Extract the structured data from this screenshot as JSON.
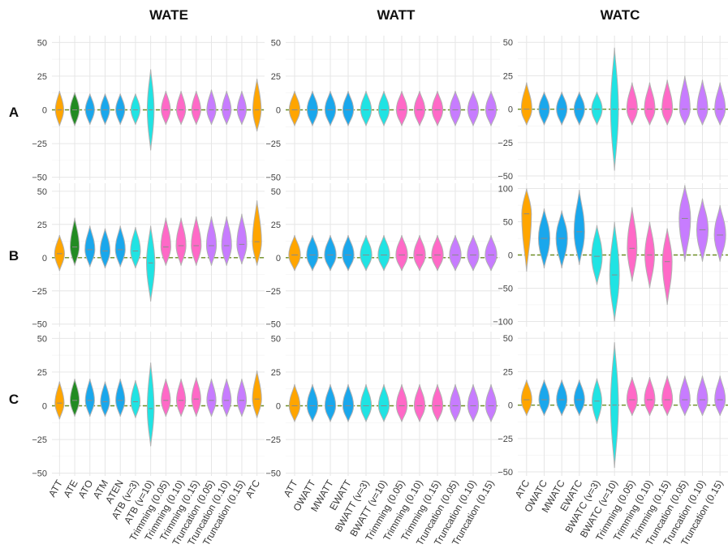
{
  "chart_data": {
    "type": "violin",
    "title": "",
    "xlabel": "",
    "ylabel": "",
    "grid": true,
    "reference_line": {
      "y": 0,
      "style": "dashed",
      "color": "#6b8e23"
    },
    "columns": [
      "WATE",
      "WATT",
      "WATC"
    ],
    "rows": [
      "A",
      "B",
      "C"
    ],
    "categories": {
      "WATE": [
        "ATT",
        "ATE",
        "ATO",
        "ATM",
        "ATEN",
        "ATB (v=3)",
        "ATB (v=10)",
        "Trimming (0.05)",
        "Trimming (0.10)",
        "Trimming (0.15)",
        "Truncation (0.05)",
        "Truncation (0.10)",
        "Truncation (0.15)",
        "ATC"
      ],
      "WATT": [
        "ATT",
        "OWATT",
        "MWATT",
        "EWATT",
        "BWATT (v=3)",
        "BWATT (v=10)",
        "Trimming (0.05)",
        "Trimming (0.10)",
        "Trimming (0.15)",
        "Truncation (0.05)",
        "Truncation (0.10)",
        "Truncation (0.15)"
      ],
      "WATC": [
        "ATC",
        "OWATC",
        "MWATC",
        "EWATC",
        "BWATC (v=3)",
        "BWATC (v=10)",
        "Trimming (0.05)",
        "Trimming (0.10)",
        "Trimming (0.15)",
        "Truncation (0.05)",
        "Truncation (0.10)",
        "Truncation (0.15)"
      ]
    },
    "colors": {
      "WATE": [
        "#FFA500",
        "#228B22",
        "#1AA7EC",
        "#1AA7EC",
        "#1AA7EC",
        "#20E3E3",
        "#20E3E3",
        "#FF69C7",
        "#FF69C7",
        "#FF69C7",
        "#C77CFF",
        "#C77CFF",
        "#C77CFF",
        "#FFA500"
      ],
      "WATT": [
        "#FFA500",
        "#1AA7EC",
        "#1AA7EC",
        "#1AA7EC",
        "#20E3E3",
        "#20E3E3",
        "#FF69C7",
        "#FF69C7",
        "#FF69C7",
        "#C77CFF",
        "#C77CFF",
        "#C77CFF"
      ],
      "WATC": [
        "#FFA500",
        "#1AA7EC",
        "#1AA7EC",
        "#1AA7EC",
        "#20E3E3",
        "#20E3E3",
        "#FF69C7",
        "#FF69C7",
        "#FF69C7",
        "#C77CFF",
        "#C77CFF",
        "#C77CFF"
      ]
    },
    "panels": [
      {
        "row": "A",
        "col": "WATE",
        "ylim": [
          -52,
          55
        ],
        "yticks": [
          "50",
          "25",
          "0",
          "−25",
          "−50"
        ],
        "ytick_values": [
          50,
          25,
          0,
          -25,
          -50
        ],
        "series": [
          {
            "c": 0,
            "min": -12,
            "max": 14,
            "w": 0.55
          },
          {
            "c": 0,
            "min": -12,
            "max": 13,
            "w": 0.6
          },
          {
            "c": 0,
            "min": -11,
            "max": 12,
            "w": 0.6
          },
          {
            "c": 0,
            "min": -11,
            "max": 12,
            "w": 0.6
          },
          {
            "c": 0,
            "min": -11,
            "max": 12,
            "w": 0.6
          },
          {
            "c": 0,
            "min": -11,
            "max": 12,
            "w": 0.6
          },
          {
            "c": 0,
            "min": -30,
            "max": 30,
            "w": 0.45
          },
          {
            "c": 0,
            "min": -11,
            "max": 14,
            "w": 0.6
          },
          {
            "c": 0,
            "min": -11,
            "max": 14,
            "w": 0.6
          },
          {
            "c": 0,
            "min": -11,
            "max": 14,
            "w": 0.6
          },
          {
            "c": 0,
            "min": -11,
            "max": 15,
            "w": 0.6
          },
          {
            "c": 0,
            "min": -11,
            "max": 14,
            "w": 0.6
          },
          {
            "c": 0,
            "min": -11,
            "max": 14,
            "w": 0.6
          },
          {
            "c": 0,
            "min": -16,
            "max": 23,
            "w": 0.55
          }
        ]
      },
      {
        "row": "A",
        "col": "WATT",
        "ylim": [
          -52,
          55
        ],
        "yticks": [
          "50",
          "25",
          "0",
          "−25",
          "−50"
        ],
        "ytick_values": [
          50,
          25,
          0,
          -25,
          -50
        ],
        "series": [
          {
            "c": 0,
            "min": -12,
            "max": 14,
            "w": 0.6
          },
          {
            "c": 0,
            "min": -12,
            "max": 14,
            "w": 0.6
          },
          {
            "c": 0,
            "min": -12,
            "max": 14,
            "w": 0.6
          },
          {
            "c": 0,
            "min": -12,
            "max": 14,
            "w": 0.6
          },
          {
            "c": 0,
            "min": -12,
            "max": 14,
            "w": 0.6
          },
          {
            "c": 0,
            "min": -12,
            "max": 14,
            "w": 0.6
          },
          {
            "c": 0,
            "min": -12,
            "max": 14,
            "w": 0.6
          },
          {
            "c": 0,
            "min": -12,
            "max": 14,
            "w": 0.6
          },
          {
            "c": 0,
            "min": -12,
            "max": 14,
            "w": 0.6
          },
          {
            "c": 0,
            "min": -12,
            "max": 14,
            "w": 0.6
          },
          {
            "c": 0,
            "min": -12,
            "max": 14,
            "w": 0.6
          },
          {
            "c": 0,
            "min": -12,
            "max": 14,
            "w": 0.6
          }
        ]
      },
      {
        "row": "A",
        "col": "WATC",
        "ylim": [
          -53,
          55
        ],
        "yticks": [
          "50",
          "25",
          "0",
          "−25",
          "−50"
        ],
        "ytick_values": [
          50,
          25,
          0,
          -25,
          -50
        ],
        "series": [
          {
            "c": 0,
            "min": -12,
            "max": 20,
            "w": 0.6
          },
          {
            "c": 0,
            "min": -12,
            "max": 13,
            "w": 0.6
          },
          {
            "c": 0,
            "min": -12,
            "max": 13,
            "w": 0.6
          },
          {
            "c": 0,
            "min": -12,
            "max": 13,
            "w": 0.6
          },
          {
            "c": 0,
            "min": -12,
            "max": 13,
            "w": 0.6
          },
          {
            "c": 0,
            "min": -46,
            "max": 46,
            "w": 0.45
          },
          {
            "c": 0,
            "min": -12,
            "max": 20,
            "w": 0.6
          },
          {
            "c": 0,
            "min": -12,
            "max": 20,
            "w": 0.6
          },
          {
            "c": 0,
            "min": -12,
            "max": 22,
            "w": 0.6
          },
          {
            "c": 0,
            "min": -12,
            "max": 25,
            "w": 0.6
          },
          {
            "c": 0,
            "min": -12,
            "max": 22,
            "w": 0.6
          },
          {
            "c": 0,
            "min": -12,
            "max": 20,
            "w": 0.6
          }
        ]
      },
      {
        "row": "B",
        "col": "WATE",
        "ylim": [
          -52,
          56
        ],
        "yticks": [
          "50",
          "25",
          "0",
          "−25",
          "−50"
        ],
        "ytick_values": [
          50,
          25,
          0,
          -25,
          -50
        ],
        "series": [
          {
            "c": 3,
            "min": -10,
            "max": 17,
            "w": 0.65
          },
          {
            "c": 8,
            "min": -6,
            "max": 30,
            "w": 0.6
          },
          {
            "c": 6,
            "min": -7,
            "max": 24,
            "w": 0.65
          },
          {
            "c": 5,
            "min": -8,
            "max": 22,
            "w": 0.65
          },
          {
            "c": 6,
            "min": -7,
            "max": 24,
            "w": 0.65
          },
          {
            "c": 5,
            "min": -8,
            "max": 23,
            "w": 0.65
          },
          {
            "c": -4,
            "min": -33,
            "max": 24,
            "w": 0.55
          },
          {
            "c": 8,
            "min": -6,
            "max": 30,
            "w": 0.65
          },
          {
            "c": 9,
            "min": -6,
            "max": 30,
            "w": 0.65
          },
          {
            "c": 9,
            "min": -6,
            "max": 31,
            "w": 0.65
          },
          {
            "c": 9,
            "min": -6,
            "max": 31,
            "w": 0.65
          },
          {
            "c": 9,
            "min": -6,
            "max": 31,
            "w": 0.65
          },
          {
            "c": 10,
            "min": -5,
            "max": 33,
            "w": 0.65
          },
          {
            "c": 12,
            "min": -6,
            "max": 43,
            "w": 0.6
          }
        ]
      },
      {
        "row": "B",
        "col": "WATT",
        "ylim": [
          -52,
          56
        ],
        "yticks": [
          "50",
          "25",
          "0",
          "−25",
          "−50"
        ],
        "ytick_values": [
          50,
          25,
          0,
          -25,
          -50
        ],
        "series": [
          {
            "c": 2,
            "min": -10,
            "max": 17,
            "w": 0.65
          },
          {
            "c": 2,
            "min": -10,
            "max": 17,
            "w": 0.65
          },
          {
            "c": 2,
            "min": -10,
            "max": 17,
            "w": 0.65
          },
          {
            "c": 2,
            "min": -10,
            "max": 17,
            "w": 0.65
          },
          {
            "c": 2,
            "min": -10,
            "max": 17,
            "w": 0.65
          },
          {
            "c": 2,
            "min": -10,
            "max": 17,
            "w": 0.65
          },
          {
            "c": 2,
            "min": -10,
            "max": 17,
            "w": 0.65
          },
          {
            "c": 2,
            "min": -10,
            "max": 17,
            "w": 0.65
          },
          {
            "c": 2,
            "min": -10,
            "max": 17,
            "w": 0.65
          },
          {
            "c": 2,
            "min": -10,
            "max": 17,
            "w": 0.65
          },
          {
            "c": 2,
            "min": -10,
            "max": 17,
            "w": 0.65
          },
          {
            "c": 2,
            "min": -10,
            "max": 17,
            "w": 0.65
          }
        ]
      },
      {
        "row": "B",
        "col": "WATC",
        "ylim": [
          -108,
          108
        ],
        "yticks": [
          "100",
          "50",
          "0",
          "−50",
          "−100"
        ],
        "ytick_values": [
          100,
          50,
          0,
          -50,
          -100
        ],
        "series": [
          {
            "c": 62,
            "min": -25,
            "max": 100,
            "w": 0.55
          },
          {
            "c": 25,
            "min": -20,
            "max": 70,
            "w": 0.65
          },
          {
            "c": 25,
            "min": -20,
            "max": 67,
            "w": 0.65
          },
          {
            "c": 35,
            "min": -15,
            "max": 98,
            "w": 0.6
          },
          {
            "c": -2,
            "min": -45,
            "max": 45,
            "w": 0.6
          },
          {
            "c": -30,
            "min": -100,
            "max": 50,
            "w": 0.55
          },
          {
            "c": 10,
            "min": -40,
            "max": 72,
            "w": 0.55
          },
          {
            "c": 0,
            "min": -50,
            "max": 50,
            "w": 0.55
          },
          {
            "c": -10,
            "min": -75,
            "max": 40,
            "w": 0.55
          },
          {
            "c": 55,
            "min": -10,
            "max": 105,
            "w": 0.65
          },
          {
            "c": 38,
            "min": -10,
            "max": 85,
            "w": 0.65
          },
          {
            "c": 30,
            "min": -10,
            "max": 75,
            "w": 0.65
          }
        ]
      },
      {
        "row": "C",
        "col": "WATE",
        "ylim": [
          -52,
          55
        ],
        "yticks": [
          "50",
          "25",
          "0",
          "−25",
          "−50"
        ],
        "ytick_values": [
          50,
          25,
          0,
          -25,
          -50
        ],
        "series": [
          {
            "c": 2,
            "min": -10,
            "max": 18,
            "w": 0.6
          },
          {
            "c": 4,
            "min": -8,
            "max": 20,
            "w": 0.6
          },
          {
            "c": 4,
            "min": -8,
            "max": 20,
            "w": 0.6
          },
          {
            "c": 3,
            "min": -8,
            "max": 18,
            "w": 0.6
          },
          {
            "c": 4,
            "min": -8,
            "max": 20,
            "w": 0.6
          },
          {
            "c": 3,
            "min": -9,
            "max": 19,
            "w": 0.6
          },
          {
            "c": -2,
            "min": -30,
            "max": 32,
            "w": 0.45
          },
          {
            "c": 4,
            "min": -8,
            "max": 20,
            "w": 0.6
          },
          {
            "c": 4,
            "min": -8,
            "max": 20,
            "w": 0.6
          },
          {
            "c": 5,
            "min": -8,
            "max": 21,
            "w": 0.6
          },
          {
            "c": 4,
            "min": -8,
            "max": 20,
            "w": 0.6
          },
          {
            "c": 4,
            "min": -8,
            "max": 20,
            "w": 0.6
          },
          {
            "c": 4,
            "min": -8,
            "max": 20,
            "w": 0.6
          },
          {
            "c": 5,
            "min": -9,
            "max": 26,
            "w": 0.6
          }
        ]
      },
      {
        "row": "C",
        "col": "WATT",
        "ylim": [
          -52,
          55
        ],
        "yticks": [
          "50",
          "25",
          "0",
          "−25",
          "−50"
        ],
        "ytick_values": [
          50,
          25,
          0,
          -25,
          -50
        ],
        "series": [
          {
            "c": 0,
            "min": -12,
            "max": 16,
            "w": 0.6
          },
          {
            "c": 0,
            "min": -12,
            "max": 16,
            "w": 0.6
          },
          {
            "c": 0,
            "min": -12,
            "max": 16,
            "w": 0.6
          },
          {
            "c": 0,
            "min": -12,
            "max": 16,
            "w": 0.6
          },
          {
            "c": 0,
            "min": -12,
            "max": 16,
            "w": 0.6
          },
          {
            "c": 0,
            "min": -12,
            "max": 16,
            "w": 0.6
          },
          {
            "c": 0,
            "min": -12,
            "max": 16,
            "w": 0.6
          },
          {
            "c": 0,
            "min": -12,
            "max": 16,
            "w": 0.6
          },
          {
            "c": 0,
            "min": -12,
            "max": 16,
            "w": 0.6
          },
          {
            "c": 0,
            "min": -12,
            "max": 16,
            "w": 0.6
          },
          {
            "c": 0,
            "min": -12,
            "max": 16,
            "w": 0.6
          },
          {
            "c": 0,
            "min": -12,
            "max": 16,
            "w": 0.6
          }
        ]
      },
      {
        "row": "C",
        "col": "WATC",
        "ylim": [
          -53,
          55
        ],
        "yticks": [
          "50",
          "25",
          "0",
          "−25",
          "−50"
        ],
        "ytick_values": [
          50,
          25,
          0,
          -25,
          -50
        ],
        "series": [
          {
            "c": 4,
            "min": -8,
            "max": 19,
            "w": 0.6
          },
          {
            "c": 4,
            "min": -8,
            "max": 19,
            "w": 0.6
          },
          {
            "c": 4,
            "min": -8,
            "max": 19,
            "w": 0.6
          },
          {
            "c": 4,
            "min": -8,
            "max": 19,
            "w": 0.6
          },
          {
            "c": 3,
            "min": -14,
            "max": 20,
            "w": 0.55
          },
          {
            "c": 0,
            "min": -47,
            "max": 47,
            "w": 0.45
          },
          {
            "c": 4,
            "min": -8,
            "max": 21,
            "w": 0.6
          },
          {
            "c": 4,
            "min": -8,
            "max": 21,
            "w": 0.6
          },
          {
            "c": 4,
            "min": -8,
            "max": 22,
            "w": 0.6
          },
          {
            "c": 4,
            "min": -8,
            "max": 22,
            "w": 0.6
          },
          {
            "c": 4,
            "min": -8,
            "max": 22,
            "w": 0.6
          },
          {
            "c": 4,
            "min": -8,
            "max": 22,
            "w": 0.6
          }
        ]
      }
    ]
  }
}
